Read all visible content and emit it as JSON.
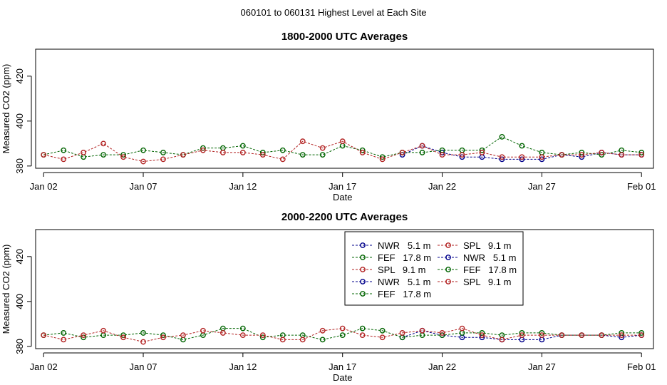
{
  "main_title": "060101  to  060131 Highest Level at Each Site",
  "chart_data": [
    {
      "type": "line",
      "title": "1800-2000 UTC Averages",
      "xlabel": "Date",
      "ylabel": "Measured CO2 (ppm)",
      "xlim": [
        0.6,
        31.6
      ],
      "ylim": [
        379,
        432
      ],
      "x_ticks": [
        1,
        6,
        11,
        16,
        21,
        26,
        31
      ],
      "x_tick_labels": [
        "Jan 02",
        "Jan 07",
        "Jan 12",
        "Jan 17",
        "Jan 22",
        "Jan 27",
        "Feb 01"
      ],
      "y_ticks": [
        380,
        400,
        420
      ],
      "series": [
        {
          "name": "NWR 5.1 m",
          "color": "#00008b",
          "x": [
            19,
            20,
            21,
            22,
            23,
            24,
            25,
            26,
            27,
            28,
            29,
            30,
            31
          ],
          "y": [
            385,
            389,
            386,
            384,
            384,
            383,
            383,
            383,
            385,
            384,
            386,
            385,
            385
          ]
        },
        {
          "name": "FEF 17.8 m",
          "color": "#006400",
          "x": [
            1,
            2,
            3,
            4,
            5,
            6,
            7,
            8,
            9,
            10,
            11,
            12,
            13,
            14,
            15,
            16,
            17,
            18,
            19,
            20,
            21,
            22,
            23,
            24,
            25,
            26,
            27,
            28,
            29,
            30,
            31
          ],
          "y": [
            385,
            387,
            384,
            385,
            385,
            387,
            386,
            385,
            388,
            388,
            389,
            386,
            387,
            385,
            385,
            389,
            387,
            384,
            386,
            386,
            387,
            387,
            387,
            393,
            389,
            386,
            385,
            386,
            385,
            387,
            386
          ]
        },
        {
          "name": "SPL 9.1 m",
          "color": "#b22222",
          "x": [
            1,
            2,
            3,
            4,
            5,
            6,
            7,
            8,
            9,
            10,
            11,
            12,
            13,
            14,
            15,
            16,
            17,
            18,
            19,
            20,
            21,
            22,
            23,
            24,
            25,
            26,
            27,
            28,
            29,
            30,
            31
          ],
          "y": [
            385,
            383,
            386,
            390,
            384,
            382,
            383,
            385,
            387,
            386,
            386,
            385,
            383,
            391,
            388,
            391,
            386,
            383,
            386,
            389,
            385,
            385,
            386,
            384,
            384,
            384,
            385,
            385,
            386,
            385,
            385
          ]
        }
      ]
    },
    {
      "type": "line",
      "title": "2000-2200 UTC Averages",
      "xlabel": "Date",
      "ylabel": "Measured CO2 (ppm)",
      "xlim": [
        0.6,
        31.6
      ],
      "ylim": [
        379,
        432
      ],
      "x_ticks": [
        1,
        6,
        11,
        16,
        21,
        26,
        31
      ],
      "x_tick_labels": [
        "Jan 02",
        "Jan 07",
        "Jan 12",
        "Jan 17",
        "Jan 22",
        "Jan 27",
        "Feb 01"
      ],
      "y_ticks": [
        380,
        400,
        420
      ],
      "legend_position": "top-right",
      "legend": [
        "NWR   5.1 m",
        "FEF   17.8 m",
        "SPL   9.1 m",
        "NWR   5.1 m",
        "FEF   17.8 m",
        "SPL   9.1 m",
        "NWR   5.1 m",
        "FEF   17.8 m",
        "SPL   9.1 m"
      ],
      "legend_colors": [
        "#00008b",
        "#006400",
        "#b22222",
        "#00008b",
        "#006400",
        "#b22222",
        "#00008b",
        "#006400",
        "#b22222"
      ],
      "series": [
        {
          "name": "NWR 5.1 m",
          "color": "#00008b",
          "x": [
            19,
            20,
            21,
            22,
            23,
            24,
            25,
            26,
            27,
            28,
            29,
            30,
            31
          ],
          "y": [
            384,
            387,
            385,
            384,
            384,
            383,
            383,
            383,
            385,
            385,
            385,
            384,
            385
          ]
        },
        {
          "name": "FEF 17.8 m",
          "color": "#006400",
          "x": [
            1,
            2,
            3,
            4,
            5,
            6,
            7,
            8,
            9,
            10,
            11,
            12,
            13,
            14,
            15,
            16,
            17,
            18,
            19,
            20,
            21,
            22,
            23,
            24,
            25,
            26,
            27,
            28,
            29,
            30,
            31
          ],
          "y": [
            385,
            386,
            384,
            385,
            385,
            386,
            385,
            383,
            385,
            388,
            388,
            384,
            385,
            385,
            383,
            385,
            388,
            387,
            384,
            385,
            385,
            386,
            386,
            385,
            386,
            386,
            385,
            385,
            385,
            386,
            386
          ]
        },
        {
          "name": "SPL 9.1 m",
          "color": "#b22222",
          "x": [
            1,
            2,
            3,
            4,
            5,
            6,
            7,
            8,
            9,
            10,
            11,
            12,
            13,
            14,
            15,
            16,
            17,
            18,
            19,
            20,
            21,
            22,
            23,
            24,
            25,
            26,
            27,
            28,
            29,
            30,
            31
          ],
          "y": [
            385,
            383,
            385,
            387,
            384,
            382,
            384,
            385,
            387,
            386,
            385,
            385,
            383,
            383,
            387,
            388,
            385,
            384,
            386,
            387,
            386,
            388,
            385,
            383,
            385,
            385,
            385,
            385,
            385,
            385,
            385
          ]
        }
      ]
    }
  ]
}
